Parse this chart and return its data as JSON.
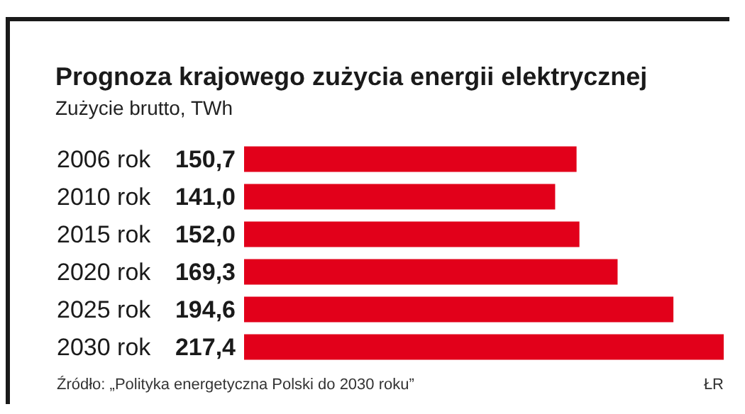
{
  "chart_data": {
    "type": "bar",
    "orientation": "horizontal",
    "title": "Prognoza krajowego zużycia energii elektrycznej",
    "subtitle": "Zużycie brutto, TWh",
    "categories": [
      "2006 rok",
      "2010 rok",
      "2015 rok",
      "2020 rok",
      "2025 rok",
      "2030 rok"
    ],
    "series": [
      {
        "color": "#e2001a",
        "values": [
          150.7,
          141.0,
          152.0,
          169.3,
          194.6,
          217.4
        ],
        "value_labels": [
          "150,7",
          "141,0",
          "152,0",
          "169,3",
          "194,6",
          "217,4"
        ]
      }
    ],
    "annotations": [
      "Źródło: „Polityka energetyczna Polski do 2030 roku”",
      "ŁR"
    ]
  }
}
